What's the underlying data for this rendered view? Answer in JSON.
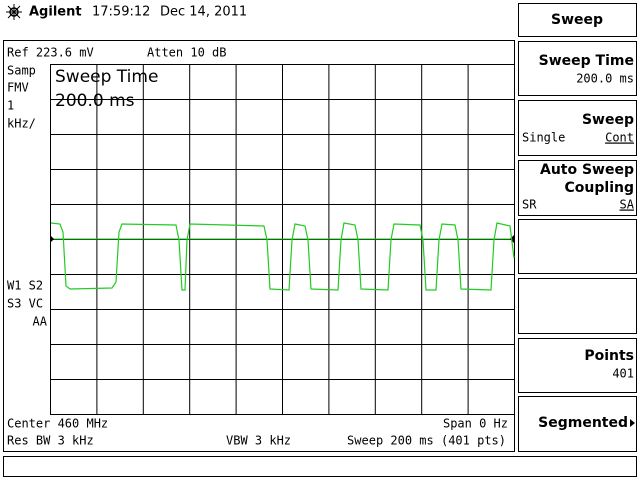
{
  "header": {
    "brand": "Agilent",
    "time": "17:59:12",
    "date": "Dec 14, 2011"
  },
  "display": {
    "ref_level": "Ref 223.6 mV",
    "attenuation": "Atten 10 dB",
    "side_labels": [
      "Samp",
      "FMV",
      "1",
      "kHz/",
      "W1 S2",
      "S3 VC",
      "AA"
    ],
    "active_function": {
      "label": "Sweep Time",
      "value": "200.0 ms"
    },
    "center": "Center 460 MHz",
    "span": "Span 0 Hz",
    "res_bw": "Res BW 3 kHz",
    "vbw": "VBW 3 kHz",
    "sweep": "Sweep 200 ms (401 pts)"
  },
  "softkeys": {
    "title": "Sweep",
    "keys": [
      {
        "label": "Sweep Time",
        "value": "200.0 ms"
      },
      {
        "label": "Sweep",
        "options": [
          "Single",
          "Cont"
        ]
      },
      {
        "label": [
          "Auto Sweep",
          "Coupling"
        ],
        "options": [
          "SR",
          "SA"
        ]
      },
      {},
      {},
      {
        "label": "Points",
        "value": "401"
      },
      {
        "label": "Segmented"
      }
    ]
  }
}
